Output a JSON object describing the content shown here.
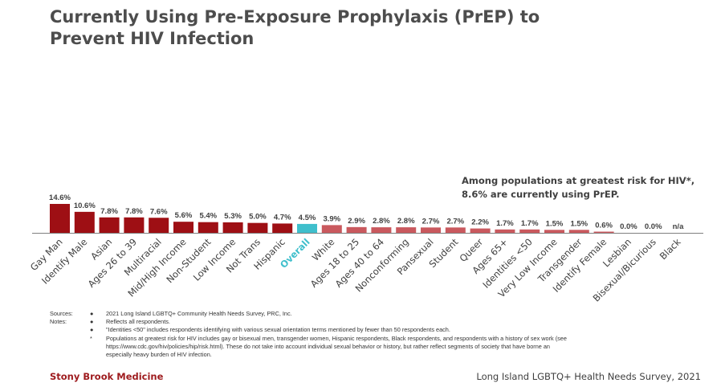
{
  "title": "Currently Using Pre-Exposure Prophylaxis (PrEP) to Prevent HIV Infection",
  "callout": [
    "Among populations at greatest risk for HIV*,",
    "8.6% are currently using PrEP."
  ],
  "chart_data": {
    "type": "bar",
    "categories": [
      "Gay Man",
      "Identify Male",
      "Asian",
      "Ages 26 to 39",
      "Multiracial",
      "Mid/High Income",
      "Non-Student",
      "Low Income",
      "Not Trans",
      "Hispanic",
      "Overall",
      "White",
      "Ages 18 to 25",
      "Ages 40 to 64",
      "Nonconforming",
      "Pansexual",
      "Student",
      "Queer",
      "Ages 65+",
      "Identities <50",
      "Very Low Income",
      "Transgender",
      "Identify Female",
      "Lesbian",
      "Bisexual/Bicurious",
      "Black"
    ],
    "values": [
      14.6,
      10.6,
      7.8,
      7.8,
      7.6,
      5.6,
      5.4,
      5.3,
      5.0,
      4.7,
      4.5,
      3.9,
      2.9,
      2.8,
      2.8,
      2.7,
      2.7,
      2.2,
      1.7,
      1.7,
      1.5,
      1.5,
      0.6,
      0.0,
      0.0,
      null
    ],
    "data_labels": [
      "14.6%",
      "10.6%",
      "7.8%",
      "7.8%",
      "7.6%",
      "5.6%",
      "5.4%",
      "5.3%",
      "5.0%",
      "4.7%",
      "4.5%",
      "3.9%",
      "2.9%",
      "2.8%",
      "2.8%",
      "2.7%",
      "2.7%",
      "2.2%",
      "1.7%",
      "1.7%",
      "1.5%",
      "1.5%",
      "0.6%",
      "0.0%",
      "0.0%",
      "n/a"
    ],
    "highlight_category": "Overall",
    "ylim": [
      0,
      15
    ],
    "grid": false,
    "legend": "none",
    "colors": {
      "above_overall": "#9e0f14",
      "overall": "#3fbfcc",
      "below_overall": "#c9595e",
      "baseline": "#7f7f7f",
      "label_default": "#404040",
      "label_highlight": "#3fbfcc"
    }
  },
  "notes": {
    "sources_label": "Sources:",
    "notes_label": "Notes:",
    "items": [
      {
        "label": "Sources:",
        "bullet": "●",
        "text": "2021 Long Island LGBTQ+ Community Health Needs Survey, PRC, Inc."
      },
      {
        "label": "Notes:",
        "bullet": "●",
        "text": "Reflects all respondents."
      },
      {
        "label": "",
        "bullet": "●",
        "text": "\"Identities <50\" includes respondents identifying with various sexual orientation terms mentioned by fewer than 50 respondents each."
      },
      {
        "label": "",
        "bullet": "*",
        "text": "Populations at greatest risk for HIV includes gay or bisexual men, transgender women, Hispanic respondents, Black respondents, and respondents with a history of sex work (see https://www.cdc.gov/hiv/policies/hip/risk.html). These do not take into account individual sexual behavior or history, but rather reflect segments of society that have borne an especially heavy burden of HIV infection."
      }
    ]
  },
  "footer": {
    "left": "Stony Brook Medicine",
    "right": "Long Island LGBTQ+ Health Needs Survey, 2021"
  }
}
